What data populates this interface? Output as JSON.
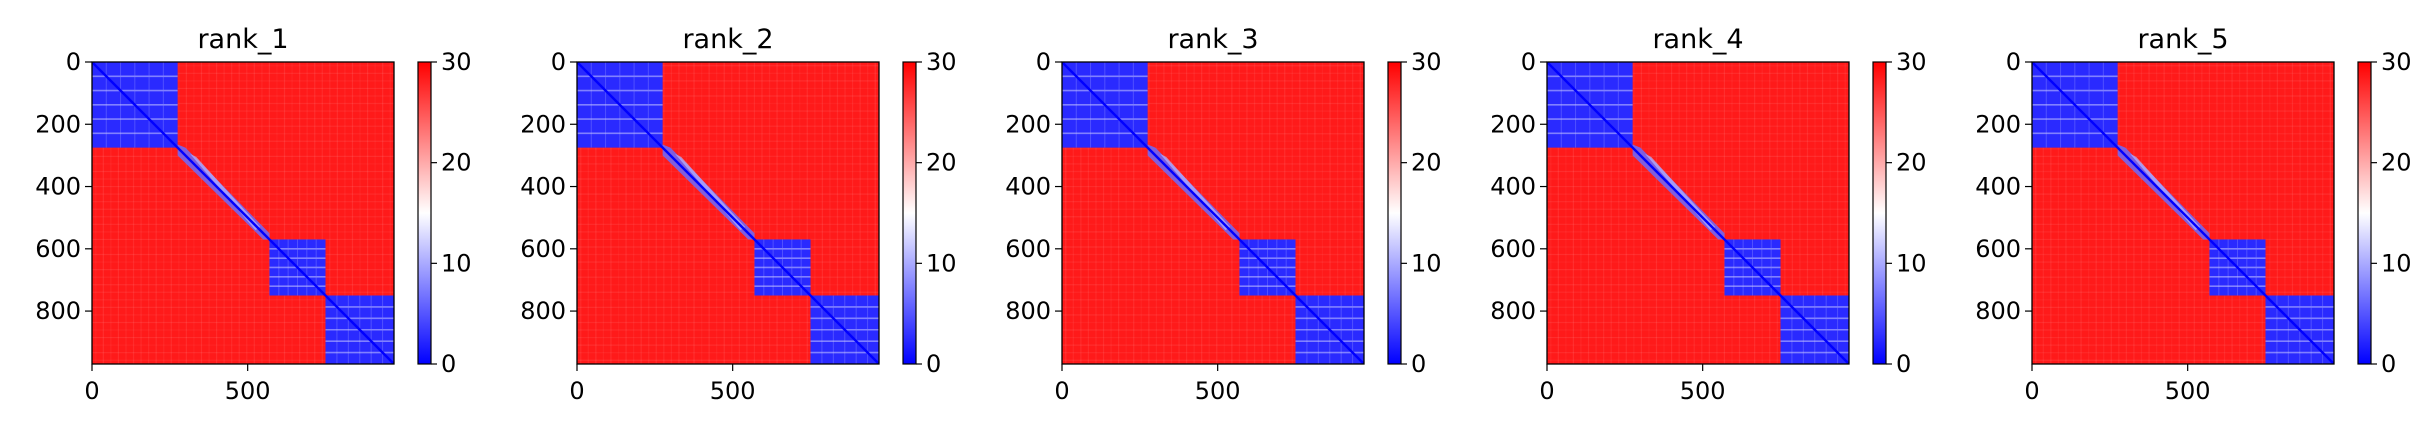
{
  "chart_data": {
    "type": "heatmap",
    "colormap": [
      "#0000ff",
      "#ffffff",
      "#ff0000"
    ],
    "colorbar": {
      "range": [
        0,
        30
      ],
      "ticks": [
        0,
        10,
        20,
        30
      ]
    },
    "axes": {
      "extent": [
        0,
        970
      ],
      "x_ticks": [
        0,
        500
      ],
      "y_ticks": [
        0,
        200,
        400,
        600,
        800
      ]
    },
    "blocks": [
      [
        0,
        275
      ],
      [
        275,
        570
      ],
      [
        570,
        750
      ],
      [
        750,
        970
      ]
    ],
    "panels": [
      {
        "title": "rank_1"
      },
      {
        "title": "rank_2"
      },
      {
        "title": "rank_3"
      },
      {
        "title": "rank_4"
      },
      {
        "title": "rank_5"
      }
    ]
  }
}
